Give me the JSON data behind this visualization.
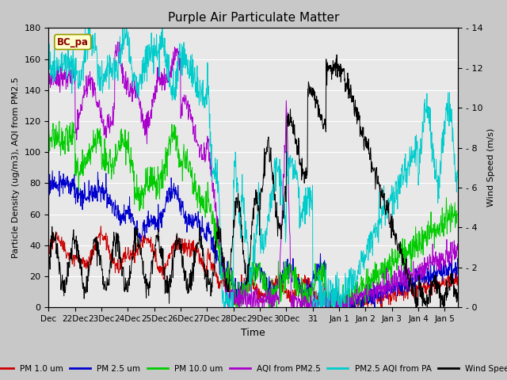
{
  "title": "Purple Air Particulate Matter",
  "xlabel": "Time",
  "ylabel_left": "Particle Density (ug/m3), AQI from PM2.5",
  "ylabel_right": "Wind Speed (m/s)",
  "ylim_left": [
    0,
    180
  ],
  "ylim_right": [
    0,
    14
  ],
  "annotation_text": "BC_pa",
  "fig_bg_color": "#c8c8c8",
  "plot_bg_color": "#e8e8e8",
  "line_colors": {
    "pm1": "#cc0000",
    "pm25": "#0000cc",
    "pm10": "#00cc00",
    "aqi_pm25": "#aa00cc",
    "aqi_pa": "#00cccc",
    "wind": "#000000"
  },
  "legend_labels": [
    "PM 1.0 um",
    "PM 2.5 um",
    "PM 10.0 um",
    "AQI from PM2.5",
    "PM2.5 AQI from PA",
    "Wind Speed"
  ],
  "x_tick_labels": [
    "Dec",
    "22Dec",
    "23Dec",
    "24Dec",
    "25Dec",
    "26Dec",
    "27Dec",
    "28Dec",
    "29Dec",
    "30Dec",
    "31",
    "Jan 1",
    "Jan 2",
    "Jan 3",
    "Jan 4",
    "Jan 5"
  ],
  "xtick_pos": [
    0,
    1,
    2,
    3,
    4,
    5,
    6,
    7,
    8,
    9,
    10,
    11,
    12,
    13,
    14,
    15
  ],
  "yticks_left": [
    0,
    20,
    40,
    60,
    80,
    100,
    120,
    140,
    160,
    180
  ],
  "yticks_right": [
    0,
    2,
    4,
    6,
    8,
    10,
    12,
    14
  ],
  "grid_color": "#ffffff",
  "figsize": [
    6.4,
    4.8
  ],
  "dpi": 100
}
